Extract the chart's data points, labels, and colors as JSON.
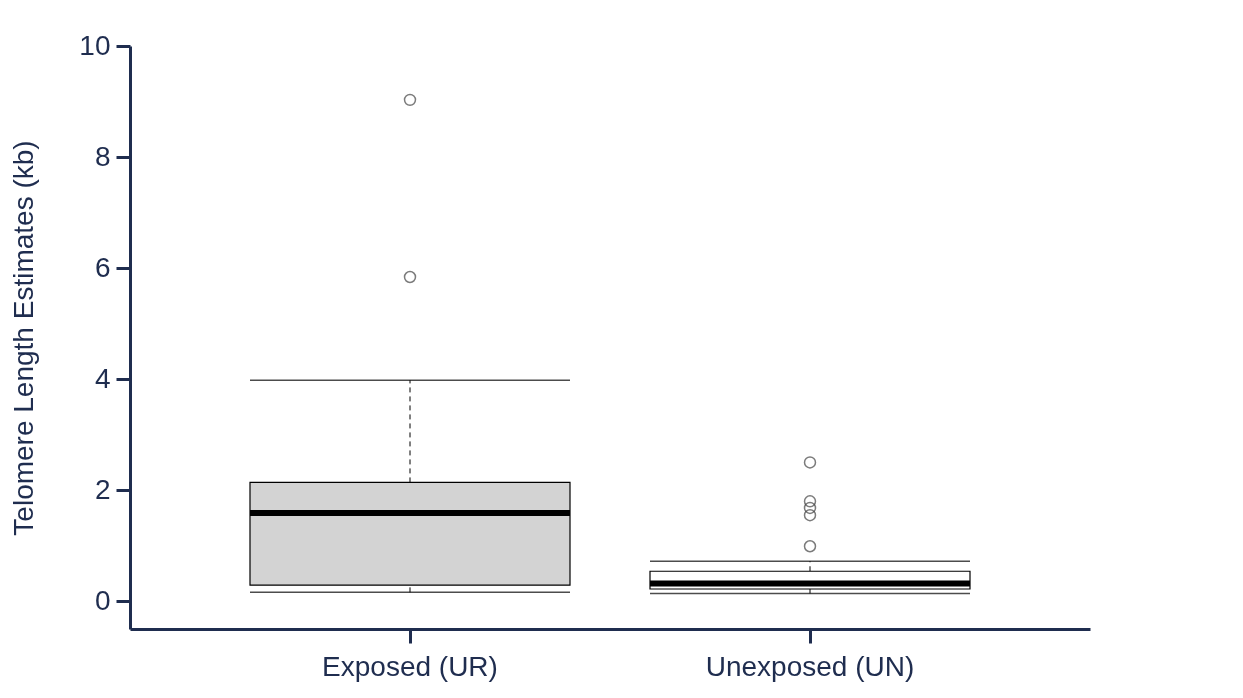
{
  "chart_data": {
    "type": "box",
    "ylabel": "Telomere Length Estimates (kb)",
    "categories": [
      "Exposed (UR)",
      "Unexposed (UN)"
    ],
    "colors": [
      "#d3d3d3",
      "#ffffff"
    ],
    "boxes": [
      {
        "low": 0.16,
        "q1": 0.29,
        "median": 1.59,
        "q3": 2.14,
        "high": 3.98,
        "outliers": [
          5.84,
          9.03
        ]
      },
      {
        "low": 0.14,
        "q1": 0.22,
        "median": 0.32,
        "q3": 0.54,
        "high": 0.72,
        "outliers": [
          0.99,
          1.55,
          1.68,
          1.8,
          2.5
        ]
      }
    ],
    "ylim": [
      -0.5,
      10
    ],
    "yticks": [
      0,
      2,
      4,
      6,
      8,
      10
    ],
    "grid": false
  }
}
